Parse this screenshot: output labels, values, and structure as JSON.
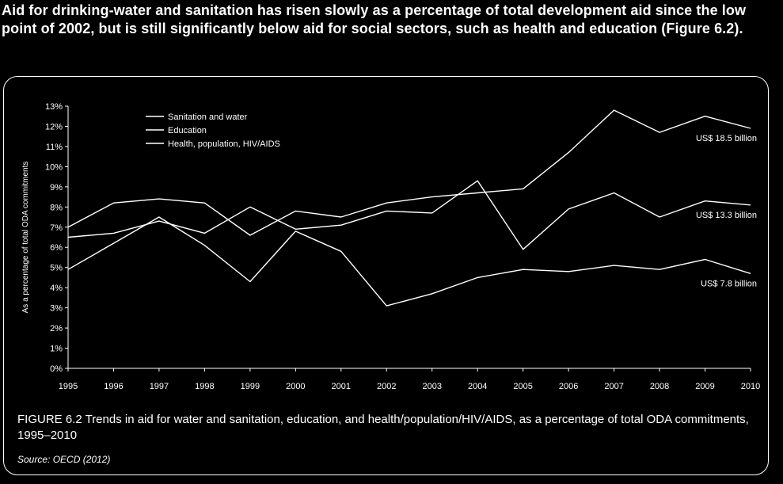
{
  "intro_text": "Aid for drinking-water and sanitation has risen slowly as a percentage of total development aid since the low point of 2002, but is still significantly below aid for social sectors, such as health and education (Figure 6.2).",
  "caption": "FIGURE 6.2 Trends in aid for water and sanitation, education, and health/population/HIV/AIDS, as a percentage of total ODA commitments, 1995–2010",
  "source": "Source: OECD (2012)",
  "colors": {
    "background": "#000000",
    "foreground": "#ffffff"
  },
  "chart_data": {
    "type": "line",
    "title": "",
    "xlabel": "",
    "ylabel": "As a percentage of total ODA commitments",
    "x": [
      "1995",
      "1996",
      "1997",
      "1998",
      "1999",
      "2000",
      "2001",
      "2002",
      "2003",
      "2004",
      "2005",
      "2006",
      "2007",
      "2008",
      "2009",
      "2010"
    ],
    "yticks": [
      "0%",
      "1%",
      "2%",
      "3%",
      "4%",
      "5%",
      "6%",
      "7%",
      "8%",
      "9%",
      "10%",
      "11%",
      "12%",
      "13%"
    ],
    "ylim": [
      0,
      13
    ],
    "grid": false,
    "legend_position": "top-left",
    "series": [
      {
        "name": "Sanitation and water",
        "values": [
          4.9,
          6.2,
          7.5,
          6.1,
          4.3,
          6.8,
          5.8,
          3.1,
          3.7,
          4.5,
          4.9,
          4.8,
          5.1,
          4.9,
          5.4,
          4.7
        ]
      },
      {
        "name": "Education",
        "values": [
          6.5,
          6.7,
          7.3,
          6.7,
          8.0,
          6.9,
          7.1,
          7.8,
          7.7,
          9.3,
          5.9,
          7.9,
          8.7,
          7.5,
          8.3,
          8.1
        ]
      },
      {
        "name": "Health, population, HIV/AIDS",
        "values": [
          7.0,
          8.2,
          8.4,
          8.2,
          6.6,
          7.8,
          7.5,
          8.2,
          8.5,
          8.7,
          8.9,
          10.7,
          12.8,
          11.7,
          12.5,
          11.9
        ]
      }
    ],
    "annotations": [
      {
        "text": "US$ 18.5 billion",
        "series": 2
      },
      {
        "text": "US$ 13.3 billion",
        "series": 1
      },
      {
        "text": "US$ 7.8 billion",
        "series": 0
      }
    ]
  }
}
